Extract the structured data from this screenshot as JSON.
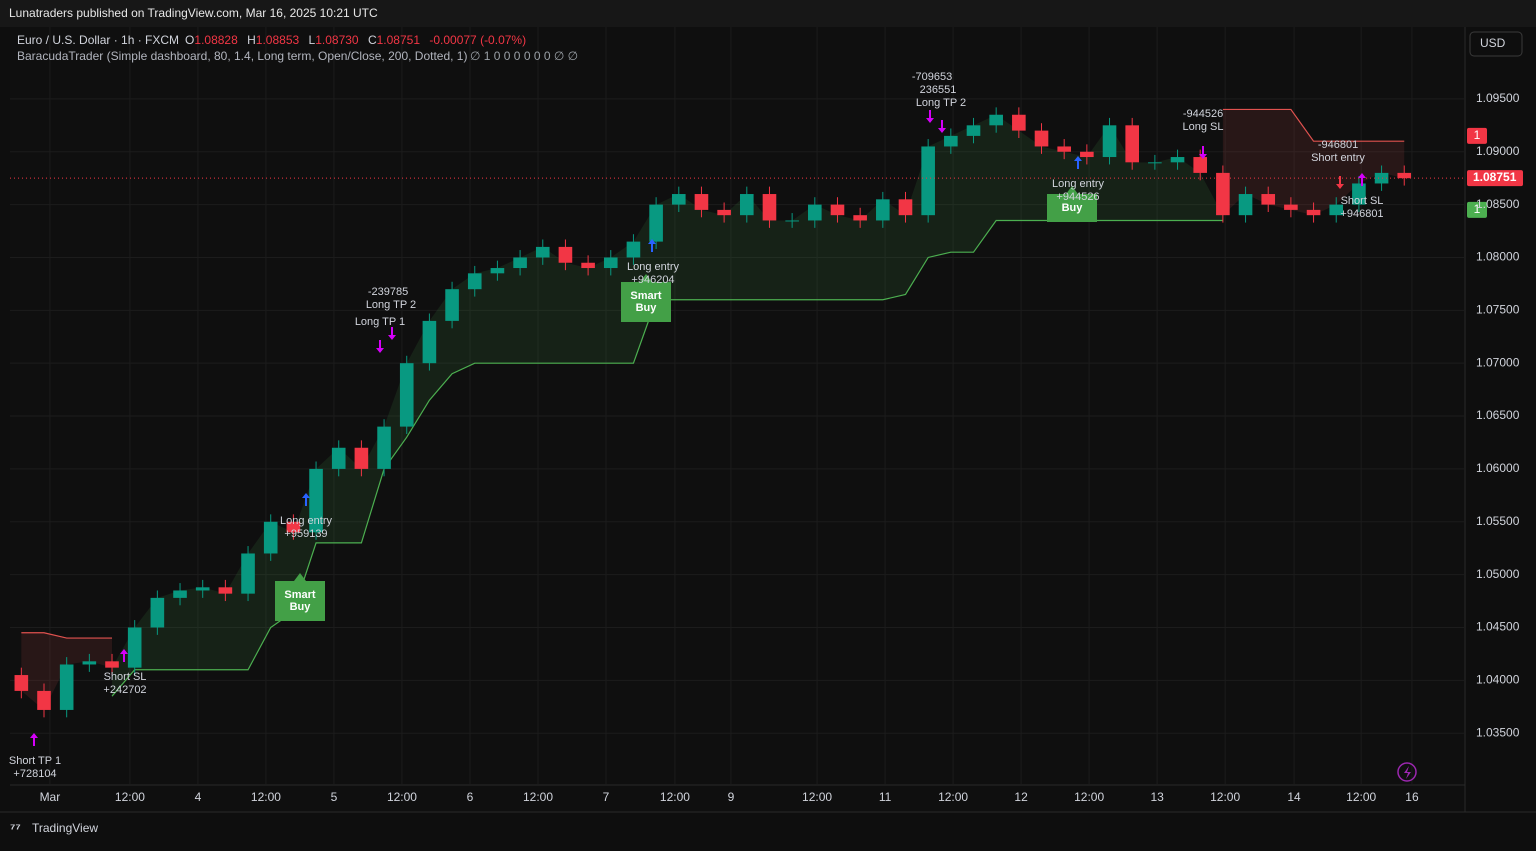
{
  "header": {
    "publisher": "Lunatraders published on TradingView.com, Mar 16, 2025 10:21 UTC"
  },
  "symbol": {
    "name": "Euro / U.S. Dollar · 1h · FXCM",
    "o_label": "O",
    "o": "1.08828",
    "h_label": "H",
    "h": "1.08853",
    "l_label": "L",
    "l": "1.08730",
    "c_label": "C",
    "c": "1.08751",
    "change": "-0.00077 (-0.07%)"
  },
  "indicator": {
    "name": "BaracudaTrader (Simple dashboard, 80, 1.4, Long term, Open/Close, 200, Dotted, 1)",
    "values": "∅ 1 0 0 0 0 0 0 ∅ ∅"
  },
  "currency": "USD",
  "footer": "TradingView",
  "chart_data": {
    "type": "candlestick",
    "up_color": "#089981",
    "down_color": "#f23645",
    "open": [
      1.0405,
      1.039,
      1.0372,
      1.0415,
      1.0418,
      1.0412,
      1.045,
      1.0478,
      1.0485,
      1.0488,
      1.0482,
      1.052,
      1.055,
      1.054,
      1.06,
      1.062,
      1.06,
      1.064,
      1.07,
      1.074,
      1.077,
      1.0785,
      1.079,
      1.08,
      1.081,
      1.0795,
      1.079,
      1.08,
      1.0815,
      1.085,
      1.086,
      1.0845,
      1.084,
      1.086,
      1.0835,
      1.0835,
      1.085,
      1.084,
      1.0835,
      1.0855,
      1.084,
      1.0905,
      1.0915,
      1.0925,
      1.0935,
      1.092,
      1.0905,
      1.09,
      1.0895,
      1.0925,
      1.089,
      1.089,
      1.0895,
      1.088,
      1.084,
      1.086,
      1.085,
      1.0845,
      1.084,
      1.085,
      1.087,
      1.088
    ],
    "high": [
      1.0412,
      1.0397,
      1.0422,
      1.0425,
      1.0425,
      1.0457,
      1.0485,
      1.0492,
      1.0495,
      1.0495,
      1.0527,
      1.0557,
      1.0557,
      1.0607,
      1.0627,
      1.0627,
      1.0647,
      1.0707,
      1.0747,
      1.0777,
      1.0792,
      1.0797,
      1.0807,
      1.0817,
      1.0817,
      1.0802,
      1.0807,
      1.0822,
      1.0857,
      1.0867,
      1.0867,
      1.0852,
      1.0867,
      1.0867,
      1.0842,
      1.0857,
      1.0857,
      1.0847,
      1.0862,
      1.0862,
      1.0912,
      1.0922,
      1.0932,
      1.0942,
      1.0942,
      1.0927,
      1.0912,
      1.0907,
      1.0932,
      1.0932,
      1.0897,
      1.0902,
      1.0902,
      1.0887,
      1.0867,
      1.0867,
      1.0857,
      1.0852,
      1.0857,
      1.0877,
      1.0887,
      1.0887
    ],
    "low": [
      1.0383,
      1.0365,
      1.0365,
      1.0408,
      1.0405,
      1.0405,
      1.0443,
      1.0471,
      1.0478,
      1.0475,
      1.0475,
      1.0513,
      1.0533,
      1.0533,
      1.0593,
      1.0593,
      1.0593,
      1.0633,
      1.0693,
      1.0733,
      1.0763,
      1.0778,
      1.0783,
      1.0793,
      1.0788,
      1.0783,
      1.0783,
      1.0793,
      1.0808,
      1.0843,
      1.0838,
      1.0833,
      1.0833,
      1.0828,
      1.0828,
      1.0828,
      1.0833,
      1.0828,
      1.0828,
      1.0833,
      1.0833,
      1.0898,
      1.0908,
      1.0918,
      1.0913,
      1.0898,
      1.0893,
      1.0888,
      1.0888,
      1.0883,
      1.0883,
      1.0883,
      1.0873,
      1.0833,
      1.0833,
      1.0843,
      1.0838,
      1.0833,
      1.0833,
      1.0843,
      1.0863,
      1.0868
    ],
    "close": [
      1.039,
      1.0372,
      1.0415,
      1.0418,
      1.0412,
      1.045,
      1.0478,
      1.0485,
      1.0488,
      1.0482,
      1.052,
      1.055,
      1.054,
      1.06,
      1.062,
      1.06,
      1.064,
      1.07,
      1.074,
      1.077,
      1.0785,
      1.079,
      1.08,
      1.081,
      1.0795,
      1.079,
      1.08,
      1.0815,
      1.085,
      1.086,
      1.0845,
      1.084,
      1.086,
      1.0835,
      1.0835,
      1.085,
      1.084,
      1.0835,
      1.0855,
      1.084,
      1.0905,
      1.0915,
      1.0925,
      1.0935,
      1.092,
      1.0905,
      1.09,
      1.0895,
      1.0925,
      1.089,
      1.089,
      1.0895,
      1.088,
      1.084,
      1.086,
      1.085,
      1.0845,
      1.084,
      1.085,
      1.087,
      1.088,
      1.0875
    ],
    "bands": [
      {
        "color": "#4caf50",
        "values": [
          null,
          null,
          null,
          null,
          1.0385,
          1.041,
          1.041,
          1.041,
          1.041,
          1.041,
          1.041,
          1.045,
          1.0465,
          1.053,
          1.053,
          1.053,
          1.06,
          1.063,
          1.0665,
          1.069,
          1.07,
          1.07,
          1.07,
          1.07,
          1.07,
          1.07,
          1.07,
          1.07,
          1.076,
          1.076,
          1.076,
          1.076,
          1.076,
          1.076,
          1.076,
          1.076,
          1.076,
          1.076,
          1.076,
          1.0765,
          1.08,
          1.0805,
          1.0805,
          1.0835,
          1.0835,
          1.0835,
          1.0835,
          1.0835,
          1.0835,
          1.0835,
          1.0835,
          1.0835,
          1.0835,
          1.0835,
          null,
          null,
          null,
          null,
          null,
          null,
          null,
          null
        ]
      },
      {
        "color": "#e0524f",
        "values": [
          1.0445,
          1.0445,
          1.044,
          1.044,
          1.044,
          null,
          null,
          null,
          null,
          null,
          null,
          null,
          null,
          null,
          null,
          null,
          null,
          null,
          null,
          null,
          null,
          null,
          null,
          null,
          null,
          null,
          null,
          null,
          null,
          null,
          null,
          null,
          null,
          null,
          null,
          null,
          null,
          null,
          null,
          null,
          null,
          null,
          null,
          null,
          null,
          null,
          null,
          null,
          null,
          null,
          null,
          null,
          null,
          1.094,
          1.094,
          1.094,
          1.094,
          1.091,
          1.091,
          1.091,
          1.091,
          1.091
        ]
      }
    ],
    "xlim": [
      0,
      64.18
    ],
    "ylim": [
      1.0301,
      1.1018
    ],
    "xticks": [
      {
        "value": 1.76,
        "label": "Mar"
      },
      {
        "value": 5.29,
        "label": "12:00"
      },
      {
        "value": 8.29,
        "label": "4"
      },
      {
        "value": 11.29,
        "label": "12:00"
      },
      {
        "value": 14.29,
        "label": "5"
      },
      {
        "value": 17.29,
        "label": "12:00"
      },
      {
        "value": 20.29,
        "label": "6"
      },
      {
        "value": 23.29,
        "label": "12:00"
      },
      {
        "value": 26.29,
        "label": "7"
      },
      {
        "value": 29.33,
        "label": "12:00"
      },
      {
        "value": 31.8,
        "label": "9"
      },
      {
        "value": 35.6,
        "label": "12:00"
      },
      {
        "value": 38.6,
        "label": "11"
      },
      {
        "value": 41.6,
        "label": "12:00"
      },
      {
        "value": 44.6,
        "label": "12"
      },
      {
        "value": 47.6,
        "label": "12:00"
      },
      {
        "value": 50.6,
        "label": "13"
      },
      {
        "value": 53.6,
        "label": "12:00"
      },
      {
        "value": 56.64,
        "label": "14"
      },
      {
        "value": 59.6,
        "label": "12:00"
      },
      {
        "value": 61.84,
        "label": "16"
      }
    ],
    "yticks": [
      {
        "value": 1.035,
        "label": "1.03500"
      },
      {
        "value": 1.04,
        "label": "1.04000"
      },
      {
        "value": 1.045,
        "label": "1.04500"
      },
      {
        "value": 1.05,
        "label": "1.05000"
      },
      {
        "value": 1.055,
        "label": "1.05500"
      },
      {
        "value": 1.06,
        "label": "1.06000"
      },
      {
        "value": 1.065,
        "label": "1.06500"
      },
      {
        "value": 1.07,
        "label": "1.07000"
      },
      {
        "value": 1.075,
        "label": "1.07500"
      },
      {
        "value": 1.08,
        "label": "1.08000"
      },
      {
        "value": 1.085,
        "label": "1.08500"
      },
      {
        "value": 1.09,
        "label": "1.09000"
      },
      {
        "value": 1.095,
        "label": "1.09500"
      }
    ],
    "grid": true,
    "last_price": {
      "value": 1.08751,
      "label": "1.08751"
    },
    "level_tags": [
      {
        "value": 1.0915,
        "label": "1",
        "color": "#f23645"
      },
      {
        "value": 1.0845,
        "label": "1",
        "color": "#4caf50"
      }
    ],
    "annotations": [
      [
        "Short TP 1",
        "+728104"
      ],
      [
        "Short SL",
        "+242702"
      ],
      [
        "Long entry",
        "+959139"
      ],
      [
        "-239785",
        "Long TP 2",
        "Long TP 1"
      ],
      [
        "Long entry",
        "+946204"
      ],
      [
        "-709653",
        "236551",
        "Long TP 2"
      ],
      [
        "Long entry",
        "+944526"
      ],
      [
        "-944526",
        "Long SL"
      ],
      [
        "-946801",
        "Short entry"
      ],
      [
        "Short SL",
        "+946801"
      ]
    ],
    "signal_boxes": [
      [
        "Smart",
        "Buy"
      ],
      [
        "Smart",
        "Buy"
      ],
      [
        "Buy"
      ]
    ]
  }
}
